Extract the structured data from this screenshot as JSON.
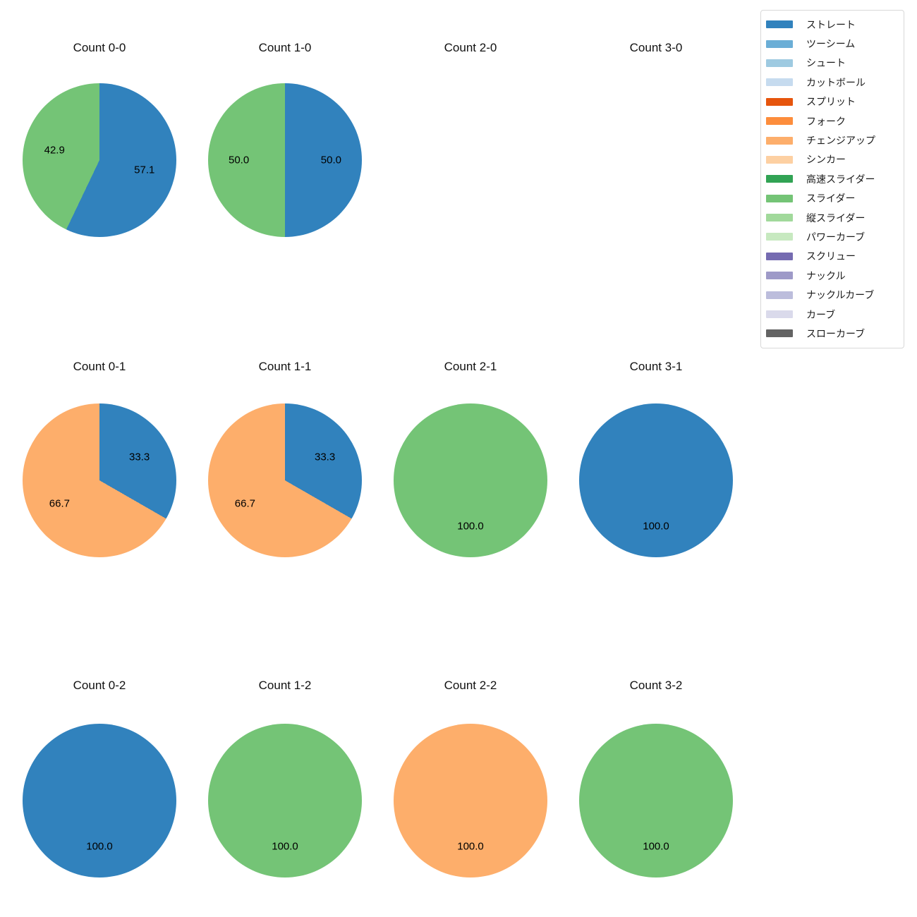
{
  "figure": {
    "background": "#ffffff",
    "text_color": "#111111"
  },
  "legend": {
    "items": [
      {
        "label": "ストレート",
        "color": "#3182bd"
      },
      {
        "label": "ツーシーム",
        "color": "#6baed6"
      },
      {
        "label": "シュート",
        "color": "#9ecae1"
      },
      {
        "label": "カットボール",
        "color": "#c6dbef"
      },
      {
        "label": "スプリット",
        "color": "#e6550d"
      },
      {
        "label": "フォーク",
        "color": "#fd8d3c"
      },
      {
        "label": "チェンジアップ",
        "color": "#fdae6b"
      },
      {
        "label": "シンカー",
        "color": "#fdd0a2"
      },
      {
        "label": "高速スライダー",
        "color": "#31a354"
      },
      {
        "label": "スライダー",
        "color": "#74c476"
      },
      {
        "label": "縦スライダー",
        "color": "#a1d99b"
      },
      {
        "label": "パワーカーブ",
        "color": "#c7e9c0"
      },
      {
        "label": "スクリュー",
        "color": "#756bb1"
      },
      {
        "label": "ナックル",
        "color": "#9e9ac8"
      },
      {
        "label": "ナックルカーブ",
        "color": "#bcbddc"
      },
      {
        "label": "カーブ",
        "color": "#dadaeb"
      },
      {
        "label": "スローカーブ",
        "color": "#636363"
      }
    ]
  },
  "chart_data": [
    {
      "type": "pie",
      "title": "Count 0-0",
      "start_angle": 90,
      "clockwise": true,
      "label_distance": 0.6,
      "slices": [
        {
          "label": "ストレート",
          "value": 57.1,
          "display": "57.1"
        },
        {
          "label": "スライダー",
          "value": 42.9,
          "display": "42.9"
        }
      ]
    },
    {
      "type": "pie",
      "title": "Count 1-0",
      "start_angle": 90,
      "clockwise": true,
      "label_distance": 0.6,
      "slices": [
        {
          "label": "ストレート",
          "value": 50.0,
          "display": "50.0"
        },
        {
          "label": "スライダー",
          "value": 50.0,
          "display": "50.0"
        }
      ]
    },
    {
      "type": "pie",
      "title": "Count 2-0",
      "start_angle": 90,
      "clockwise": true,
      "label_distance": 0.6,
      "slices": []
    },
    {
      "type": "pie",
      "title": "Count 3-0",
      "start_angle": 90,
      "clockwise": true,
      "label_distance": 0.6,
      "slices": []
    },
    {
      "type": "pie",
      "title": "Count 0-1",
      "start_angle": 90,
      "clockwise": true,
      "label_distance": 0.6,
      "slices": [
        {
          "label": "ストレート",
          "value": 33.3,
          "display": "33.3"
        },
        {
          "label": "チェンジアップ",
          "value": 66.7,
          "display": "66.7"
        }
      ]
    },
    {
      "type": "pie",
      "title": "Count 1-1",
      "start_angle": 90,
      "clockwise": true,
      "label_distance": 0.6,
      "slices": [
        {
          "label": "ストレート",
          "value": 33.3,
          "display": "33.3"
        },
        {
          "label": "チェンジアップ",
          "value": 66.7,
          "display": "66.7"
        }
      ]
    },
    {
      "type": "pie",
      "title": "Count 2-1",
      "start_angle": 90,
      "clockwise": true,
      "label_distance": 0.6,
      "slices": [
        {
          "label": "スライダー",
          "value": 100.0,
          "display": "100.0"
        }
      ]
    },
    {
      "type": "pie",
      "title": "Count 3-1",
      "start_angle": 90,
      "clockwise": true,
      "label_distance": 0.6,
      "slices": [
        {
          "label": "ストレート",
          "value": 100.0,
          "display": "100.0"
        }
      ]
    },
    {
      "type": "pie",
      "title": "Count 0-2",
      "start_angle": 90,
      "clockwise": true,
      "label_distance": 0.6,
      "slices": [
        {
          "label": "ストレート",
          "value": 100.0,
          "display": "100.0"
        }
      ]
    },
    {
      "type": "pie",
      "title": "Count 1-2",
      "start_angle": 90,
      "clockwise": true,
      "label_distance": 0.6,
      "slices": [
        {
          "label": "スライダー",
          "value": 100.0,
          "display": "100.0"
        }
      ]
    },
    {
      "type": "pie",
      "title": "Count 2-2",
      "start_angle": 90,
      "clockwise": true,
      "label_distance": 0.6,
      "slices": [
        {
          "label": "チェンジアップ",
          "value": 100.0,
          "display": "100.0"
        }
      ]
    },
    {
      "type": "pie",
      "title": "Count 3-2",
      "start_angle": 90,
      "clockwise": true,
      "label_distance": 0.6,
      "slices": [
        {
          "label": "スライダー",
          "value": 100.0,
          "display": "100.0"
        }
      ]
    }
  ]
}
